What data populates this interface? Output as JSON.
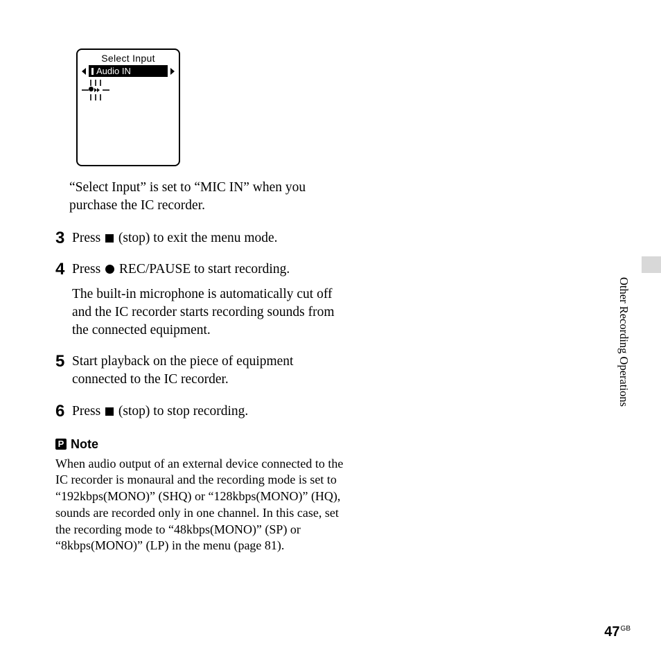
{
  "lcd": {
    "title": "Select Input",
    "selected": "Audio IN"
  },
  "intro": "“Select Input” is set to “MIC IN” when you purchase the IC recorder.",
  "steps": {
    "s3": {
      "num": "3",
      "pre": "Press ",
      "post": " (stop) to exit the menu mode."
    },
    "s4": {
      "num": "4",
      "pre": "Press ",
      "post": " REC/PAUSE to start recording.",
      "detail": "The built-in microphone is automatically cut off and the IC recorder starts recording sounds from the connected equipment."
    },
    "s5": {
      "num": "5",
      "text": "Start playback on the piece of equipment connected to the IC recorder."
    },
    "s6": {
      "num": "6",
      "pre": "Press ",
      "post": " (stop) to stop recording."
    }
  },
  "note": {
    "icon": "P",
    "heading": "Note",
    "body": "When audio output of an external device connected to the IC recorder is monaural and the recording mode is set to “192kbps(MONO)” (SHQ) or “128kbps(MONO)” (HQ), sounds are recorded only in one channel. In this case, set the recording mode to “48kbps(MONO)” (SP) or “8kbps(MONO)” (LP) in the menu (page 81)."
  },
  "sideLabel": "Other Recording Operations",
  "pageNumber": "47",
  "pageRegion": "GB"
}
